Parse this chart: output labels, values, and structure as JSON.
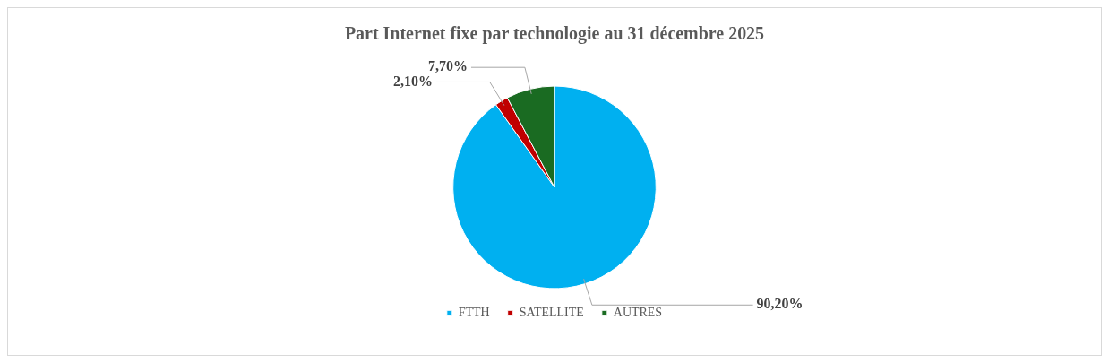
{
  "chart_data": {
    "type": "pie",
    "title": "Part Internet fixe par technologie au 31 décembre 2025",
    "categories": [
      "FTTH",
      "SATELLITE",
      "AUTRES"
    ],
    "values": [
      90.2,
      2.1,
      7.7
    ],
    "colors": [
      "#00b0f0",
      "#c00000",
      "#1a6b22"
    ],
    "value_labels": [
      "90,20%",
      "2,10%",
      "7,70%"
    ],
    "legend": "bottom"
  }
}
